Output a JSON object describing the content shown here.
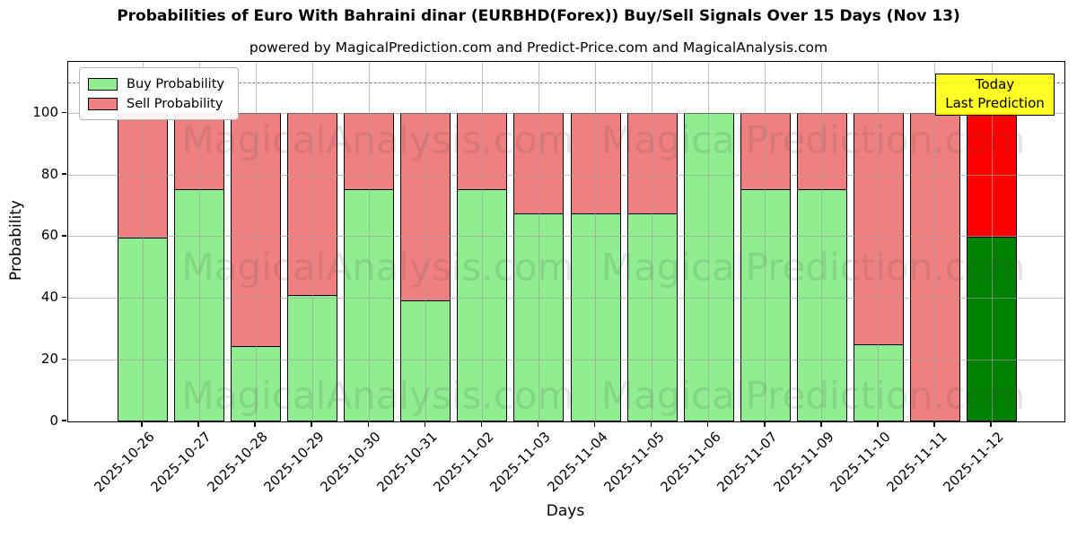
{
  "title": "Probabilities of Euro With Bahraini dinar (EURBHD(Forex)) Buy/Sell Signals Over 15 Days (Nov 13)",
  "subtitle": "powered by MagicalPrediction.com and Predict-Price.com and MagicalAnalysis.com",
  "legend": {
    "buy_label": "Buy Probability",
    "sell_label": "Sell Probability"
  },
  "annotation": {
    "line1": "Today",
    "line2": "Last Prediction"
  },
  "watermarks": [
    "MagicalAnalysis.com",
    "MagicalPrediction.com"
  ],
  "colors": {
    "buy": "#90EE90",
    "sell": "#F08080",
    "today_buy": "#008000",
    "today_sell": "#FF0000",
    "annotation_bg": "#FFFF00",
    "grid": "#A0A0A0",
    "dashed_line": "#7A7A7A",
    "bar_edge": "#000000"
  },
  "chart_data": {
    "type": "bar",
    "stacked": true,
    "title": "Probabilities of Euro With Bahraini dinar (EURBHD(Forex)) Buy/Sell Signals Over 15 Days (Nov 13)",
    "xlabel": "Days",
    "ylabel": "Probability",
    "categories": [
      "2025-10-26",
      "2025-10-27",
      "2025-10-28",
      "2025-10-29",
      "2025-10-30",
      "2025-10-31",
      "2025-11-02",
      "2025-11-03",
      "2025-11-04",
      "2025-11-05",
      "2025-11-06",
      "2025-11-07",
      "2025-11-09",
      "2025-11-10",
      "2025-11-11",
      "2025-11-12"
    ],
    "series": [
      {
        "name": "Buy Probability",
        "values": [
          59.7,
          75.3,
          24.6,
          41.0,
          75.3,
          39.4,
          75.3,
          67.5,
          67.5,
          67.5,
          100.0,
          75.3,
          75.3,
          25.1,
          0.0,
          60.0
        ]
      },
      {
        "name": "Sell Probability",
        "values": [
          40.3,
          24.7,
          75.4,
          59.0,
          24.7,
          60.6,
          24.7,
          32.5,
          32.5,
          32.5,
          0.0,
          24.7,
          24.7,
          74.9,
          100.0,
          40.0
        ]
      }
    ],
    "today_index": 15,
    "yticks": [
      0,
      20,
      40,
      60,
      80,
      100
    ],
    "ylim": [
      0,
      116.7
    ],
    "dashed_line_y": 110,
    "grid": true,
    "legend_position": "upper left"
  }
}
